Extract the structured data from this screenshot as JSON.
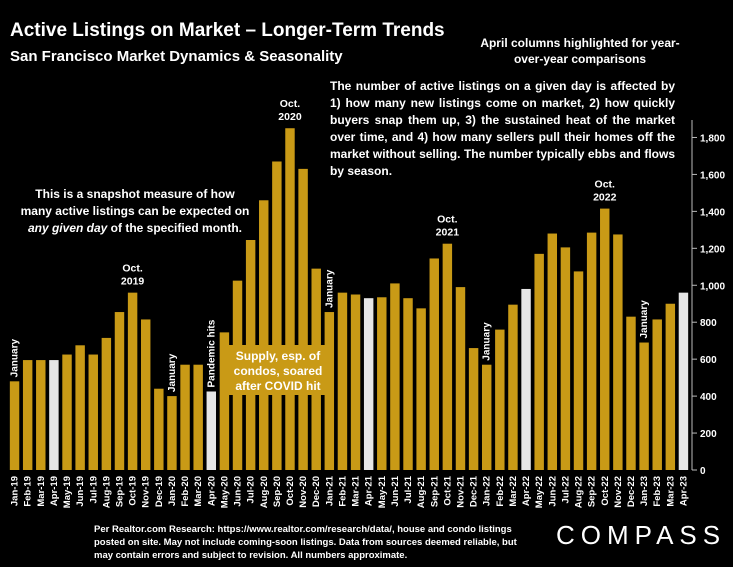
{
  "title": "Active Listings on Market – Longer-Term Trends",
  "subtitle": "San Francisco Market Dynamics & Seasonality",
  "april_note": "April columns highlighted for year-over-year comparisons",
  "explanation": "The number of active listings on a given day is affected by 1) how many new listings come on market, 2) how quickly buyers snap them up, 3) the sustained heat of the market over time, and 4) how many sellers pull their homes off the market without selling. The number typically ebbs and flows by season.",
  "snapshot_note": {
    "before": "This is a snapshot measure of how many active listings can be expected on ",
    "emphasis": "any given day",
    "after": " of the specified month."
  },
  "supply_note": "Supply, esp. of condos, soared after COVID hit",
  "footer": "Per Realtor.com Research:  https://www.realtor.com/research/data/, house and condo listings posted on site. May not include coming-soon listings. Data from sources deemed reliable, but may contain errors and subject to revision. All numbers approximate.",
  "logo": "COMPASS",
  "colors": {
    "bar": "#c99a16",
    "april": "#e6e6e6",
    "background": "#000000",
    "text": "#ffffff"
  },
  "chart_data": {
    "type": "bar",
    "categories": [
      "Jan-19",
      "Feb-19",
      "Mar-19",
      "Apr-19",
      "May-19",
      "Jun-19",
      "Jul-19",
      "Aug-19",
      "Sep-19",
      "Oct-19",
      "Nov-19",
      "Dec-19",
      "Jan-20",
      "Feb-20",
      "Mar-20",
      "Apr-20",
      "May-20",
      "Jun-20",
      "Jul-20",
      "Aug-20",
      "Sep-20",
      "Oct-20",
      "Nov-20",
      "Dec-20",
      "Jan-21",
      "Feb-21",
      "Mar-21",
      "Apr-21",
      "May-21",
      "Jun-21",
      "Jul-21",
      "Aug-21",
      "Sep-21",
      "Oct-21",
      "Nov-21",
      "Dec-21",
      "Jan-22",
      "Feb-22",
      "Mar-22",
      "Apr-22",
      "May-22",
      "Jun-22",
      "Jul-22",
      "Aug-22",
      "Sep-22",
      "Oct-22",
      "Nov-22",
      "Dec-22",
      "Jan-23",
      "Feb-23",
      "Mar-23",
      "Apr-23"
    ],
    "values": [
      480,
      595,
      595,
      595,
      625,
      675,
      625,
      715,
      855,
      960,
      815,
      440,
      400,
      570,
      570,
      425,
      745,
      1025,
      1245,
      1460,
      1670,
      1850,
      1630,
      1090,
      855,
      960,
      950,
      930,
      935,
      1010,
      930,
      875,
      1145,
      1225,
      990,
      660,
      570,
      760,
      895,
      980,
      1170,
      1280,
      1205,
      1075,
      1285,
      1415,
      1275,
      830,
      690,
      815,
      900,
      960
    ],
    "highlighted": [
      "Apr-19",
      "Apr-20",
      "Apr-21",
      "Apr-22",
      "Apr-23"
    ],
    "ylim": [
      0,
      1900
    ],
    "yticks": [
      0,
      200,
      400,
      600,
      800,
      "1,000",
      "1,200",
      "1,400",
      "1,600",
      "1,800"
    ],
    "y_axis_side": "right",
    "grid": false,
    "annotations": [
      {
        "category": "Jan-19",
        "text": "January",
        "orientation": "vertical"
      },
      {
        "category": "Jan-20",
        "text": "January",
        "orientation": "vertical"
      },
      {
        "category": "Apr-20",
        "text": "Pandemic hits",
        "orientation": "vertical"
      },
      {
        "category": "Jan-21",
        "text": "January",
        "orientation": "vertical"
      },
      {
        "category": "Jan-22",
        "text": "January",
        "orientation": "vertical"
      },
      {
        "category": "Jan-23",
        "text": "January",
        "orientation": "vertical"
      },
      {
        "category": "Oct-19",
        "text": [
          "Oct.",
          "2019"
        ],
        "orientation": "horizontal"
      },
      {
        "category": "Oct-20",
        "text": [
          "Oct.",
          "2020"
        ],
        "orientation": "horizontal"
      },
      {
        "category": "Oct-21",
        "text": [
          "Oct.",
          "2021"
        ],
        "orientation": "horizontal"
      },
      {
        "category": "Oct-22",
        "text": [
          "Oct.",
          "2022"
        ],
        "orientation": "horizontal"
      }
    ]
  }
}
